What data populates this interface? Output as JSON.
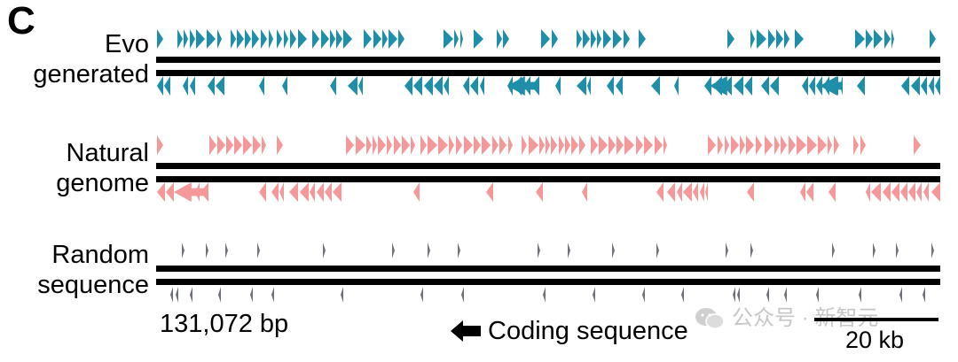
{
  "panel_letter": "C",
  "tracks": [
    {
      "label_lines": [
        "Evo",
        "generated"
      ],
      "color": "#1f8ea8",
      "kind": "evo"
    },
    {
      "label_lines": [
        "Natural",
        "genome"
      ],
      "color": "#f4989a",
      "kind": "natural"
    },
    {
      "label_lines": [
        "Random",
        "sequence"
      ],
      "color": "#6f7178",
      "kind": "random"
    }
  ],
  "length_label": "131,072 bp",
  "legend": {
    "label": "Coding sequence",
    "icon": "left-arrow-icon"
  },
  "scale_bar": {
    "label": "20 kb"
  },
  "watermark": {
    "text": "公众号 · 新智元",
    "icon": "wechat-icon"
  }
}
